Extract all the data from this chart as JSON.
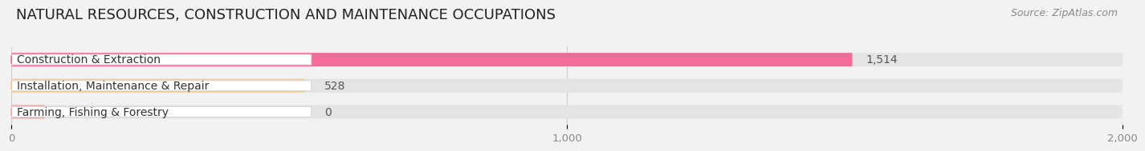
{
  "title": "NATURAL RESOURCES, CONSTRUCTION AND MAINTENANCE OCCUPATIONS",
  "source": "Source: ZipAtlas.com",
  "categories": [
    "Construction & Extraction",
    "Installation, Maintenance & Repair",
    "Farming, Fishing & Forestry"
  ],
  "values": [
    1514,
    528,
    0
  ],
  "bar_colors": [
    "#f56b9a",
    "#f5c990",
    "#f5a8a8"
  ],
  "background_color": "#f2f2f2",
  "bar_bg_color": "#e4e4e4",
  "label_bg_color": "#ffffff",
  "xlim": [
    0,
    2000
  ],
  "xticks": [
    0,
    1000,
    2000
  ],
  "xtick_labels": [
    "0",
    "1,000",
    "2,000"
  ],
  "value_labels": [
    "1,514",
    "528",
    "0"
  ],
  "title_fontsize": 13,
  "label_fontsize": 10,
  "tick_fontsize": 9.5,
  "value_fontsize": 10,
  "source_fontsize": 9
}
